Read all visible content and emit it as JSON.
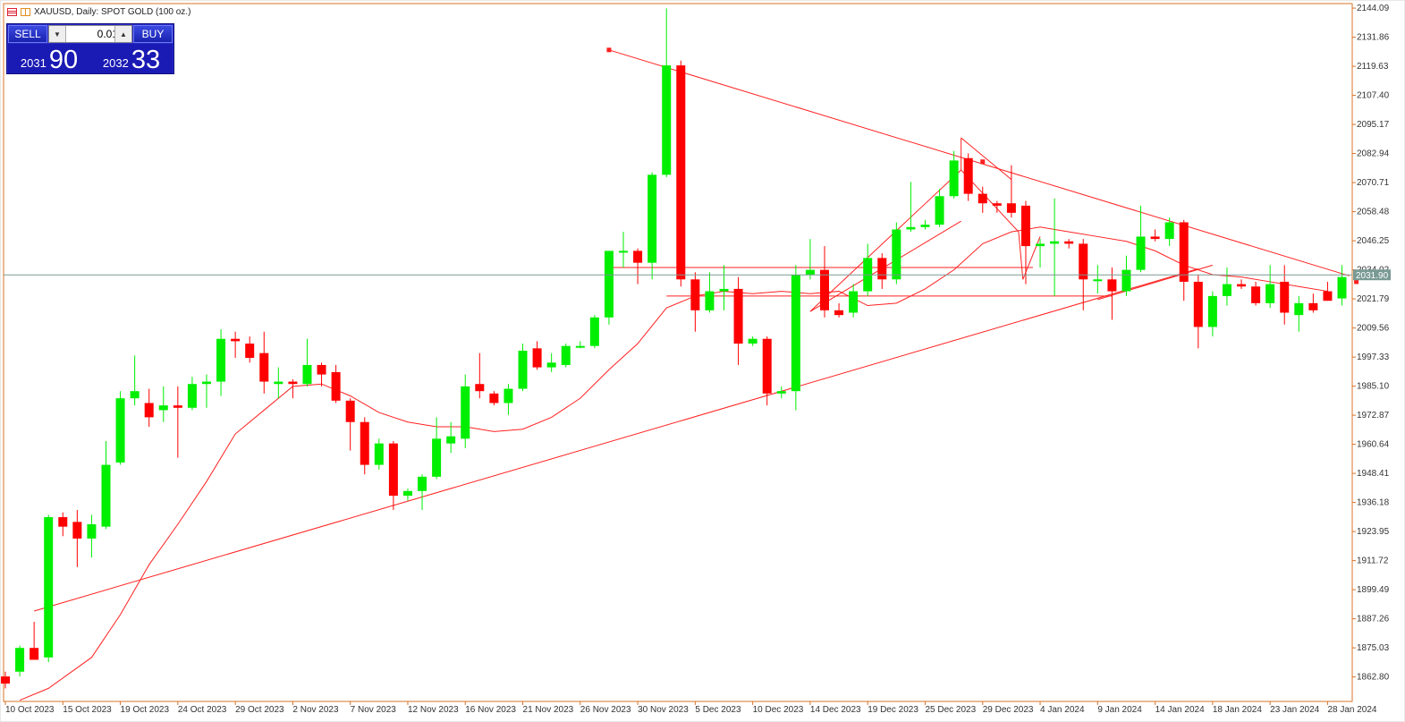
{
  "header": {
    "title": "XAUUSD, Daily:  SPOT GOLD (100 oz.)",
    "icon_color_a": "#d02030",
    "icon_color_b": "#e09020"
  },
  "trade_panel": {
    "sell_label": "SELL",
    "buy_label": "BUY",
    "lot_value": "0.01",
    "sell_price_small": "2031",
    "sell_price_big": "90",
    "buy_price_small": "2032",
    "buy_price_big": "33",
    "panel_color": "#2a2ac8"
  },
  "chart_data": {
    "type": "candlestick",
    "symbol": "XAUUSD",
    "timeframe": "Daily",
    "current_price": 2031.9,
    "current_price_label": "2031.90",
    "ylim": [
      1852.5,
      2146.0
    ],
    "y_tick_labels": [
      "2144.09",
      "2131.86",
      "2119.63",
      "2107.40",
      "2095.17",
      "2082.94",
      "2070.71",
      "2058.48",
      "2046.25",
      "2034.02",
      "2021.79",
      "2009.56",
      "1997.33",
      "1985.10",
      "1972.87",
      "1960.64",
      "1948.41",
      "1936.18",
      "1923.95",
      "1911.72",
      "1899.49",
      "1887.26",
      "1875.03",
      "1862.80"
    ],
    "x_tick_labels": [
      {
        "label": "10 Oct 2023",
        "index": 0
      },
      {
        "label": "15 Oct 2023",
        "index": 4
      },
      {
        "label": "19 Oct 2023",
        "index": 8
      },
      {
        "label": "24 Oct 2023",
        "index": 12
      },
      {
        "label": "29 Oct 2023",
        "index": 16
      },
      {
        "label": "2 Nov 2023",
        "index": 20
      },
      {
        "label": "7 Nov 2023",
        "index": 24
      },
      {
        "label": "12 Nov 2023",
        "index": 28
      },
      {
        "label": "16 Nov 2023",
        "index": 32
      },
      {
        "label": "21 Nov 2023",
        "index": 36
      },
      {
        "label": "26 Nov 2023",
        "index": 40
      },
      {
        "label": "30 Nov 2023",
        "index": 44
      },
      {
        "label": "5 Dec 2023",
        "index": 48
      },
      {
        "label": "10 Dec 2023",
        "index": 52
      },
      {
        "label": "14 Dec 2023",
        "index": 56
      },
      {
        "label": "19 Dec 2023",
        "index": 60
      },
      {
        "label": "25 Dec 2023",
        "index": 64
      },
      {
        "label": "29 Dec 2023",
        "index": 68
      },
      {
        "label": "4 Jan 2024",
        "index": 72
      },
      {
        "label": "9 Jan 2024",
        "index": 76
      },
      {
        "label": "14 Jan 2024",
        "index": 80
      },
      {
        "label": "18 Jan 2024",
        "index": 84
      },
      {
        "label": "23 Jan 2024",
        "index": 88
      },
      {
        "label": "28 Jan 2024",
        "index": 92
      }
    ],
    "up_color": "#00ee00",
    "down_color": "#ff0000",
    "candles": [
      {
        "o": 1863.0,
        "h": 1865.0,
        "l": 1858.0,
        "c": 1860.0
      },
      {
        "o": 1865.0,
        "h": 1876.0,
        "l": 1863.0,
        "c": 1875.0
      },
      {
        "o": 1875.0,
        "h": 1886.0,
        "l": 1871.0,
        "c": 1870.0
      },
      {
        "o": 1871.0,
        "h": 1931.0,
        "l": 1869.0,
        "c": 1930.0
      },
      {
        "o": 1930.0,
        "h": 1932.0,
        "l": 1922.0,
        "c": 1926.0
      },
      {
        "o": 1928.0,
        "h": 1933.0,
        "l": 1909.0,
        "c": 1921.0
      },
      {
        "o": 1921.0,
        "h": 1931.0,
        "l": 1913.0,
        "c": 1927.0
      },
      {
        "o": 1926.0,
        "h": 1962.0,
        "l": 1925.0,
        "c": 1952.0
      },
      {
        "o": 1953.0,
        "h": 1983.0,
        "l": 1952.0,
        "c": 1980.0
      },
      {
        "o": 1980.0,
        "h": 1998.0,
        "l": 1977.0,
        "c": 1983.0
      },
      {
        "o": 1978.0,
        "h": 1984.0,
        "l": 1968.0,
        "c": 1972.0
      },
      {
        "o": 1975.0,
        "h": 1985.0,
        "l": 1970.0,
        "c": 1977.0
      },
      {
        "o": 1977.0,
        "h": 1985.0,
        "l": 1955.0,
        "c": 1976.0
      },
      {
        "o": 1976.0,
        "h": 1989.0,
        "l": 1975.0,
        "c": 1986.0
      },
      {
        "o": 1986.0,
        "h": 1990.0,
        "l": 1976.0,
        "c": 1987.0
      },
      {
        "o": 1987.0,
        "h": 2009.0,
        "l": 1981.0,
        "c": 2005.0
      },
      {
        "o": 2005.0,
        "h": 2008.0,
        "l": 1997.0,
        "c": 2004.0
      },
      {
        "o": 2003.0,
        "h": 2006.0,
        "l": 1995.0,
        "c": 1997.0
      },
      {
        "o": 1999.0,
        "h": 2008.0,
        "l": 1982.0,
        "c": 1987.0
      },
      {
        "o": 1986.0,
        "h": 1993.0,
        "l": 1980.0,
        "c": 1987.0
      },
      {
        "o": 1987.0,
        "h": 1988.0,
        "l": 1980.0,
        "c": 1986.0
      },
      {
        "o": 1986.0,
        "h": 2005.0,
        "l": 1985.0,
        "c": 1994.0
      },
      {
        "o": 1994.0,
        "h": 1995.0,
        "l": 1985.0,
        "c": 1990.0
      },
      {
        "o": 1991.0,
        "h": 1994.0,
        "l": 1978.0,
        "c": 1979.0
      },
      {
        "o": 1979.0,
        "h": 1980.0,
        "l": 1958.0,
        "c": 1970.0
      },
      {
        "o": 1970.0,
        "h": 1972.0,
        "l": 1948.0,
        "c": 1952.0
      },
      {
        "o": 1952.0,
        "h": 1963.0,
        "l": 1950.0,
        "c": 1961.0
      },
      {
        "o": 1961.0,
        "h": 1962.0,
        "l": 1933.0,
        "c": 1939.0
      },
      {
        "o": 1939.0,
        "h": 1942.0,
        "l": 1937.0,
        "c": 1941.0
      },
      {
        "o": 1941.0,
        "h": 1948.0,
        "l": 1933.0,
        "c": 1947.0
      },
      {
        "o": 1947.0,
        "h": 1972.0,
        "l": 1946.0,
        "c": 1963.0
      },
      {
        "o": 1961.0,
        "h": 1970.0,
        "l": 1957.0,
        "c": 1964.0
      },
      {
        "o": 1963.0,
        "h": 1990.0,
        "l": 1959.0,
        "c": 1985.0
      },
      {
        "o": 1986.0,
        "h": 1999.0,
        "l": 1980.0,
        "c": 1983.0
      },
      {
        "o": 1982.0,
        "h": 1983.0,
        "l": 1977.0,
        "c": 1978.0
      },
      {
        "o": 1978.0,
        "h": 1986.0,
        "l": 1973.0,
        "c": 1984.0
      },
      {
        "o": 1984.0,
        "h": 2003.0,
        "l": 1983.0,
        "c": 2000.0
      },
      {
        "o": 2001.0,
        "h": 2004.0,
        "l": 1992.0,
        "c": 1993.0
      },
      {
        "o": 1993.0,
        "h": 1999.0,
        "l": 1991.0,
        "c": 1995.0
      },
      {
        "o": 1994.0,
        "h": 2003.0,
        "l": 1993.0,
        "c": 2002.0
      },
      {
        "o": 2002.0,
        "h": 2004.0,
        "l": 2001.0,
        "c": 2002.0
      },
      {
        "o": 2002.0,
        "h": 2015.0,
        "l": 2001.0,
        "c": 2014.0
      },
      {
        "o": 2014.0,
        "h": 2042.0,
        "l": 2011.0,
        "c": 2042.0
      },
      {
        "o": 2042.0,
        "h": 2050.0,
        "l": 2035.0,
        "c": 2042.0
      },
      {
        "o": 2042.0,
        "h": 2043.0,
        "l": 2028.0,
        "c": 2037.0
      },
      {
        "o": 2037.0,
        "h": 2075.0,
        "l": 2030.0,
        "c": 2074.0
      },
      {
        "o": 2074.0,
        "h": 2144.0,
        "l": 2073.0,
        "c": 2120.0
      },
      {
        "o": 2120.0,
        "h": 2122.0,
        "l": 2027.0,
        "c": 2030.0
      },
      {
        "o": 2030.0,
        "h": 2033.0,
        "l": 2008.0,
        "c": 2017.0
      },
      {
        "o": 2017.0,
        "h": 2033.0,
        "l": 2016.0,
        "c": 2025.0
      },
      {
        "o": 2025.0,
        "h": 2036.0,
        "l": 2017.0,
        "c": 2026.0
      },
      {
        "o": 2026.0,
        "h": 2031.0,
        "l": 1994.0,
        "c": 2003.0
      },
      {
        "o": 2003.0,
        "h": 2006.0,
        "l": 2002.0,
        "c": 2005.0
      },
      {
        "o": 2005.0,
        "h": 2006.0,
        "l": 1977.0,
        "c": 1982.0
      },
      {
        "o": 1982.0,
        "h": 1985.0,
        "l": 1980.0,
        "c": 1983.0
      },
      {
        "o": 1983.0,
        "h": 2036.0,
        "l": 1975.0,
        "c": 2032.0
      },
      {
        "o": 2032.0,
        "h": 2047.0,
        "l": 2030.0,
        "c": 2034.0
      },
      {
        "o": 2034.0,
        "h": 2044.0,
        "l": 2014.0,
        "c": 2017.0
      },
      {
        "o": 2017.0,
        "h": 2020.0,
        "l": 2014.0,
        "c": 2015.0
      },
      {
        "o": 2016.0,
        "h": 2028.0,
        "l": 2014.0,
        "c": 2025.0
      },
      {
        "o": 2025.0,
        "h": 2045.0,
        "l": 2023.0,
        "c": 2039.0
      },
      {
        "o": 2039.0,
        "h": 2041.0,
        "l": 2026.0,
        "c": 2030.0
      },
      {
        "o": 2030.0,
        "h": 2054.0,
        "l": 2028.0,
        "c": 2051.0
      },
      {
        "o": 2051.0,
        "h": 2071.0,
        "l": 2050.0,
        "c": 2052.0
      },
      {
        "o": 2052.0,
        "h": 2055.0,
        "l": 2051.0,
        "c": 2053.0
      },
      {
        "o": 2053.0,
        "h": 2068.0,
        "l": 2052.0,
        "c": 2065.0
      },
      {
        "o": 2065.0,
        "h": 2084.0,
        "l": 2064.0,
        "c": 2080.0
      },
      {
        "o": 2081.0,
        "h": 2083.0,
        "l": 2063.0,
        "c": 2066.0
      },
      {
        "o": 2066.0,
        "h": 2069.0,
        "l": 2058.0,
        "c": 2062.0
      },
      {
        "o": 2062.0,
        "h": 2063.0,
        "l": 2058.0,
        "c": 2061.0
      },
      {
        "o": 2062.0,
        "h": 2078.0,
        "l": 2056.0,
        "c": 2058.0
      },
      {
        "o": 2061.0,
        "h": 2063.0,
        "l": 2028.0,
        "c": 2044.0
      },
      {
        "o": 2044.0,
        "h": 2047.0,
        "l": 2035.0,
        "c": 2045.0
      },
      {
        "o": 2045.0,
        "h": 2064.0,
        "l": 2023.0,
        "c": 2046.0
      },
      {
        "o": 2046.0,
        "h": 2047.0,
        "l": 2043.0,
        "c": 2045.0
      },
      {
        "o": 2045.0,
        "h": 2047.0,
        "l": 2017.0,
        "c": 2030.0
      },
      {
        "o": 2030.0,
        "h": 2036.0,
        "l": 2024.0,
        "c": 2030.0
      },
      {
        "o": 2030.0,
        "h": 2035.0,
        "l": 2013.0,
        "c": 2025.0
      },
      {
        "o": 2025.0,
        "h": 2040.0,
        "l": 2023.0,
        "c": 2034.0
      },
      {
        "o": 2034.0,
        "h": 2061.0,
        "l": 2033.0,
        "c": 2048.0
      },
      {
        "o": 2048.0,
        "h": 2051.0,
        "l": 2046.0,
        "c": 2047.0
      },
      {
        "o": 2047.0,
        "h": 2056.0,
        "l": 2044.0,
        "c": 2054.0
      },
      {
        "o": 2054.0,
        "h": 2055.0,
        "l": 2021.0,
        "c": 2029.0
      },
      {
        "o": 2029.0,
        "h": 2032.0,
        "l": 2001.0,
        "c": 2010.0
      },
      {
        "o": 2010.0,
        "h": 2025.0,
        "l": 2006.0,
        "c": 2023.0
      },
      {
        "o": 2023.0,
        "h": 2035.0,
        "l": 2019.0,
        "c": 2028.0
      },
      {
        "o": 2028.0,
        "h": 2030.0,
        "l": 2026.0,
        "c": 2027.0
      },
      {
        "o": 2027.0,
        "h": 2029.0,
        "l": 2019.0,
        "c": 2020.0
      },
      {
        "o": 2020.0,
        "h": 2036.0,
        "l": 2018.0,
        "c": 2028.0
      },
      {
        "o": 2029.0,
        "h": 2036.0,
        "l": 2011.0,
        "c": 2016.0
      },
      {
        "o": 2015.0,
        "h": 2023.0,
        "l": 2008.0,
        "c": 2020.0
      },
      {
        "o": 2020.0,
        "h": 2024.0,
        "l": 2016.0,
        "c": 2017.0
      },
      {
        "o": 2025.0,
        "h": 2029.0,
        "l": 2021.0,
        "c": 2021.0
      },
      {
        "o": 2022.0,
        "h": 2036.0,
        "l": 2019.0,
        "c": 2031.0
      }
    ],
    "ma_color": "#ff2020",
    "moving_average": [
      {
        "i": 1,
        "v": 1853
      },
      {
        "i": 3,
        "v": 1858
      },
      {
        "i": 6,
        "v": 1871
      },
      {
        "i": 8,
        "v": 1889
      },
      {
        "i": 10,
        "v": 1910
      },
      {
        "i": 12,
        "v": 1927
      },
      {
        "i": 14,
        "v": 1945
      },
      {
        "i": 16,
        "v": 1965
      },
      {
        "i": 18,
        "v": 1975
      },
      {
        "i": 20,
        "v": 1985
      },
      {
        "i": 22,
        "v": 1986
      },
      {
        "i": 24,
        "v": 1981
      },
      {
        "i": 26,
        "v": 1974
      },
      {
        "i": 28,
        "v": 1970
      },
      {
        "i": 30,
        "v": 1968
      },
      {
        "i": 32,
        "v": 1968
      },
      {
        "i": 34,
        "v": 1966
      },
      {
        "i": 36,
        "v": 1967
      },
      {
        "i": 38,
        "v": 1972
      },
      {
        "i": 40,
        "v": 1980
      },
      {
        "i": 42,
        "v": 1992
      },
      {
        "i": 44,
        "v": 2003
      },
      {
        "i": 46,
        "v": 2018
      },
      {
        "i": 48,
        "v": 2023
      },
      {
        "i": 50,
        "v": 2025
      },
      {
        "i": 52,
        "v": 2024
      },
      {
        "i": 54,
        "v": 2025
      },
      {
        "i": 56,
        "v": 2024
      },
      {
        "i": 58,
        "v": 2025
      },
      {
        "i": 60,
        "v": 2019
      },
      {
        "i": 62,
        "v": 2020
      },
      {
        "i": 64,
        "v": 2026
      },
      {
        "i": 66,
        "v": 2034
      },
      {
        "i": 68,
        "v": 2045
      },
      {
        "i": 70,
        "v": 2050
      },
      {
        "i": 72,
        "v": 2052
      },
      {
        "i": 74,
        "v": 2050
      },
      {
        "i": 76,
        "v": 2048
      },
      {
        "i": 78,
        "v": 2046
      },
      {
        "i": 80,
        "v": 2042
      },
      {
        "i": 82,
        "v": 2036
      },
      {
        "i": 84,
        "v": 2032
      },
      {
        "i": 86,
        "v": 2031
      },
      {
        "i": 88,
        "v": 2029
      },
      {
        "i": 90,
        "v": 2027
      },
      {
        "i": 92,
        "v": 2025
      }
    ],
    "trend_color": "#ff2020",
    "lines": [
      {
        "name": "ascending-trendline",
        "p1": {
          "i": 2,
          "v": 1890.5
        },
        "p2": {
          "i": 83,
          "v": 2034.5
        }
      },
      {
        "name": "descending-trendline",
        "p1": {
          "i": 42,
          "v": 2126.5
        },
        "p2": {
          "i": 93.5,
          "v": 2031.5
        }
      },
      {
        "name": "resistance-line",
        "p1": {
          "i": 42,
          "v": 2035.0
        },
        "p2": {
          "i": 71.5,
          "v": 2035.0
        }
      },
      {
        "name": "support-line",
        "p1": {
          "i": 46,
          "v": 2023.0
        },
        "p2": {
          "i": 77,
          "v": 2023.0
        }
      },
      {
        "name": "channel-line",
        "p1": {
          "i": 56,
          "v": 2016.5
        },
        "p2": {
          "i": 66.5,
          "v": 2054.5
        }
      },
      {
        "name": "zigzag-1",
        "p1": {
          "i": 56,
          "v": 2016.5
        },
        "p2": {
          "i": 66.5,
          "v": 2076.0
        }
      },
      {
        "name": "zigzag-2",
        "p1": {
          "i": 66.5,
          "v": 2076.0
        },
        "p2": {
          "i": 66.5,
          "v": 2089.5
        }
      },
      {
        "name": "zigzag-3",
        "p1": {
          "i": 66.5,
          "v": 2089.5
        },
        "p2": {
          "i": 70,
          "v": 2072.0
        }
      },
      {
        "name": "zigzag-4",
        "p1": {
          "i": 66.5,
          "v": 2076.0
        },
        "p2": {
          "i": 70.5,
          "v": 2050.0
        }
      },
      {
        "name": "zigzag-5",
        "p1": {
          "i": 70.5,
          "v": 2050.0
        },
        "p2": {
          "i": 70.8,
          "v": 2030.0
        }
      },
      {
        "name": "zigzag-6",
        "p1": {
          "i": 70.8,
          "v": 2030.0
        },
        "p2": {
          "i": 72,
          "v": 2048.0
        }
      },
      {
        "name": "zigzag-7",
        "p1": {
          "i": 76,
          "v": 2021.5
        },
        "p2": {
          "i": 84,
          "v": 2036.0
        }
      }
    ],
    "markers": [
      {
        "i": 42,
        "v": 2126.5
      },
      {
        "i": 68,
        "v": 2079.5
      },
      {
        "i": 94,
        "v": 2029.0
      }
    ]
  }
}
